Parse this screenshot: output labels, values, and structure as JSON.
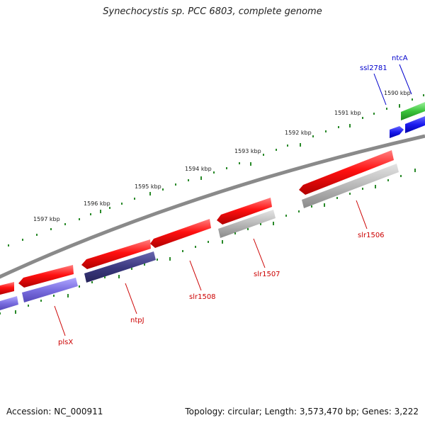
{
  "title": "Synechocystis sp. PCC 6803, complete genome",
  "footer": {
    "accession": "Accession: NC_000911",
    "summary": "Topology: circular; Length: 3,573,470 bp; Genes: 3,222"
  },
  "kbp_labels": [
    "1597 kbp",
    "1596 kbp",
    "1595 kbp",
    "1594 kbp",
    "1593 kbp",
    "1592 kbp",
    "1591 kbp",
    "1590 kbp"
  ],
  "gene_labels": {
    "ntcA": "ntcA",
    "ssl2781": "ssl2781",
    "slr1506": "slr1506",
    "slr1507": "slr1507",
    "slr1508": "slr1508",
    "ntpJ": "ntpJ",
    "plsX": "plsX"
  },
  "colors": {
    "red_cds": "#ff1010",
    "gene_label": "#cc0000",
    "gene_label_blue": "#0000cc",
    "backbone": "#808080",
    "ticks": "#2a8a2a",
    "gray_feature": "#b8b8b8",
    "purple_feature": "#7a6ee0",
    "dark_purple_feature": "#3c3a80",
    "green_feature": "#3ac43a",
    "blue_feature": "#1a1aee"
  }
}
